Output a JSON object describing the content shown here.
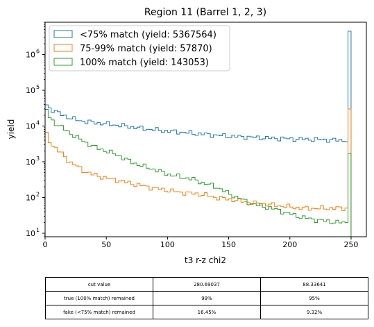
{
  "chart_data": {
    "type": "histogram-step",
    "title": "Region 11 (Barrel 1, 2, 3)",
    "xlabel": "t3 r-z chi2",
    "ylabel": "yield",
    "xlim": [
      0,
      262.5
    ],
    "ylim": [
      8,
      8000000
    ],
    "yscale": "log",
    "xticks": [
      0,
      50,
      100,
      150,
      200,
      250
    ],
    "xtick_labels": [
      "0",
      "50",
      "100",
      "150",
      "200",
      "250"
    ],
    "yticks": [
      10,
      100,
      1000,
      10000,
      100000,
      1000000
    ],
    "ytick_labels": [
      "10",
      "10",
      "10",
      "10",
      "10",
      "10"
    ],
    "ytick_exponents": [
      "1",
      "2",
      "3",
      "4",
      "5",
      "6"
    ],
    "legend_position": "upper-left",
    "bin_width": 2.5,
    "series": [
      {
        "name": "<75% match (yield: 5367564)",
        "color": "#1f77b4",
        "points": [
          [
            0,
            85000
          ],
          [
            1,
            40000
          ],
          [
            3,
            33000
          ],
          [
            6,
            28000
          ],
          [
            10,
            24000
          ],
          [
            15,
            20000
          ],
          [
            20,
            17000
          ],
          [
            25,
            15000
          ],
          [
            30,
            14000
          ],
          [
            35,
            13000
          ],
          [
            40,
            12500
          ],
          [
            50,
            11500
          ],
          [
            60,
            10500
          ],
          [
            70,
            9500
          ],
          [
            80,
            8500
          ],
          [
            90,
            7800
          ],
          [
            100,
            7200
          ],
          [
            110,
            6800
          ],
          [
            120,
            6300
          ],
          [
            130,
            5900
          ],
          [
            140,
            5500
          ],
          [
            150,
            5200
          ],
          [
            160,
            5000
          ],
          [
            170,
            4800
          ],
          [
            180,
            4600
          ],
          [
            190,
            4500
          ],
          [
            200,
            4400
          ],
          [
            210,
            4300
          ],
          [
            220,
            4200
          ],
          [
            230,
            4100
          ],
          [
            240,
            4000
          ],
          [
            247.5,
            4000
          ]
        ],
        "overflow_value": 4500000
      },
      {
        "name": "75-99% match (yield: 57870)",
        "color": "#ff7f0e",
        "points": [
          [
            0,
            12000
          ],
          [
            1,
            6000
          ],
          [
            2.5,
            4500
          ],
          [
            5,
            3200
          ],
          [
            10,
            2200
          ],
          [
            15,
            1500
          ],
          [
            20,
            1000
          ],
          [
            25,
            800
          ],
          [
            30,
            600
          ],
          [
            35,
            500
          ],
          [
            40,
            430
          ],
          [
            50,
            350
          ],
          [
            60,
            300
          ],
          [
            70,
            250
          ],
          [
            80,
            210
          ],
          [
            90,
            180
          ],
          [
            100,
            160
          ],
          [
            110,
            140
          ],
          [
            120,
            130
          ],
          [
            130,
            120
          ],
          [
            140,
            100
          ],
          [
            150,
            90
          ],
          [
            160,
            80
          ],
          [
            170,
            70
          ],
          [
            180,
            65
          ],
          [
            190,
            60
          ],
          [
            200,
            55
          ],
          [
            210,
            50
          ],
          [
            220,
            50
          ],
          [
            230,
            50
          ],
          [
            240,
            50
          ],
          [
            247.5,
            50
          ]
        ],
        "overflow_value": 30000
      },
      {
        "name": "100% match (yield: 143053)",
        "color": "#2ca02c",
        "points": [
          [
            0,
            40000
          ],
          [
            1,
            30000
          ],
          [
            2.5,
            20000
          ],
          [
            5,
            15000
          ],
          [
            10,
            11000
          ],
          [
            15,
            8500
          ],
          [
            20,
            6500
          ],
          [
            25,
            5000
          ],
          [
            30,
            4000
          ],
          [
            35,
            3200
          ],
          [
            40,
            2600
          ],
          [
            50,
            2000
          ],
          [
            60,
            1500
          ],
          [
            70,
            1000
          ],
          [
            80,
            750
          ],
          [
            90,
            600
          ],
          [
            100,
            450
          ],
          [
            110,
            380
          ],
          [
            120,
            330
          ],
          [
            130,
            250
          ],
          [
            140,
            200
          ],
          [
            150,
            130
          ],
          [
            160,
            90
          ],
          [
            170,
            65
          ],
          [
            180,
            55
          ],
          [
            190,
            45
          ],
          [
            200,
            35
          ],
          [
            210,
            28
          ],
          [
            220,
            24
          ],
          [
            230,
            22
          ],
          [
            240,
            20
          ],
          [
            247.5,
            20
          ]
        ],
        "overflow_value": 1700
      }
    ]
  },
  "cut_table": {
    "rows": [
      [
        "cut value",
        "280.69037",
        "88.33641"
      ],
      [
        "true (100% match) remained",
        "99%",
        "95%"
      ],
      [
        "fake (<75% match) remained",
        "16.45%",
        "9.32%"
      ]
    ]
  }
}
